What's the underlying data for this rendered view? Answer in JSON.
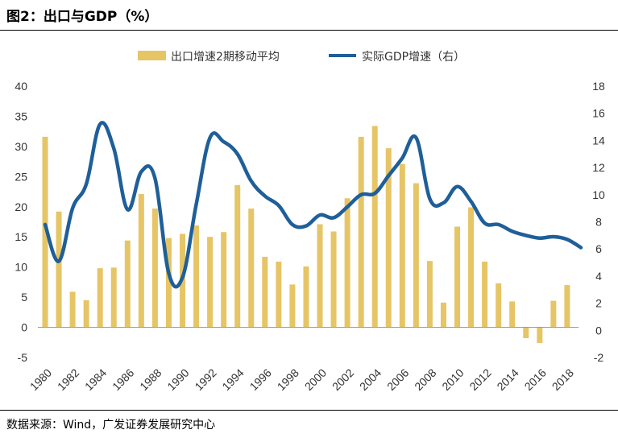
{
  "header": {
    "title": "图2：出口与GDP（%）"
  },
  "footer": {
    "source": "数据来源：Wind，广发证券发展研究中心"
  },
  "colors": {
    "bar": "#E6C566",
    "line": "#1F5F99",
    "axis": "#999999"
  },
  "chart_data": {
    "type": "bar+line",
    "title": "出口与GDP（%）",
    "legend": [
      "出口增速2期移动平均",
      "实际GDP增速（右）"
    ],
    "left_axis": {
      "ylim": [
        -5,
        40
      ],
      "ticks": [
        -5,
        0,
        5,
        10,
        15,
        20,
        25,
        30,
        35,
        40
      ]
    },
    "right_axis": {
      "ylim": [
        -2,
        18
      ],
      "ticks": [
        -2,
        0,
        2,
        4,
        6,
        8,
        10,
        12,
        14,
        16,
        18
      ]
    },
    "x_tick_labels": [
      "1980",
      "1982",
      "1984",
      "1986",
      "1988",
      "1990",
      "1992",
      "1994",
      "1996",
      "1998",
      "2000",
      "2002",
      "2004",
      "2006",
      "2008",
      "2010",
      "2012",
      "2014",
      "2016",
      "2018"
    ],
    "years": [
      1980,
      1981,
      1982,
      1983,
      1984,
      1985,
      1986,
      1987,
      1988,
      1989,
      1990,
      1991,
      1992,
      1993,
      1994,
      1995,
      1996,
      1997,
      1998,
      1999,
      2000,
      2001,
      2002,
      2003,
      2004,
      2005,
      2006,
      2007,
      2008,
      2009,
      2010,
      2011,
      2012,
      2013,
      2014,
      2015,
      2016,
      2017,
      2018,
      2019
    ],
    "series": [
      {
        "name": "出口增速2期移动平均",
        "type": "bar",
        "axis": "left",
        "x": [
          1980,
          1981,
          1982,
          1983,
          1984,
          1985,
          1986,
          1987,
          1988,
          1989,
          1990,
          1991,
          1992,
          1993,
          1994,
          1995,
          1996,
          1997,
          1998,
          1999,
          2000,
          2001,
          2002,
          2003,
          2004,
          2005,
          2006,
          2007,
          2008,
          2009,
          2010,
          2011,
          2012,
          2013,
          2014,
          2015,
          2016,
          2017,
          2018
        ],
        "values": [
          31.6,
          19.2,
          5.9,
          4.5,
          9.8,
          9.9,
          14.4,
          22.1,
          19.7,
          14.8,
          15.5,
          16.9,
          15.0,
          15.8,
          23.6,
          19.7,
          11.7,
          10.9,
          7.1,
          10.1,
          17.1,
          15.9,
          21.4,
          31.6,
          33.4,
          29.7,
          27.1,
          23.9,
          11.0,
          4.1,
          16.7,
          19.9,
          10.9,
          7.3,
          4.3,
          -1.8,
          -2.6,
          4.4,
          7.0
        ]
      },
      {
        "name": "实际GDP增速（右）",
        "type": "line",
        "axis": "right",
        "x": [
          1980,
          1981,
          1982,
          1983,
          1984,
          1985,
          1986,
          1987,
          1988,
          1989,
          1990,
          1991,
          1992,
          1993,
          1994,
          1995,
          1996,
          1997,
          1998,
          1999,
          2000,
          2001,
          2002,
          2003,
          2004,
          2005,
          2006,
          2007,
          2008,
          2009,
          2010,
          2011,
          2012,
          2013,
          2014,
          2015,
          2016,
          2017,
          2018,
          2019
        ],
        "values": [
          7.8,
          5.1,
          9.0,
          10.8,
          15.2,
          13.4,
          8.9,
          11.7,
          11.2,
          4.2,
          3.9,
          9.3,
          14.2,
          13.9,
          13.0,
          11.0,
          9.9,
          9.2,
          7.8,
          7.7,
          8.5,
          8.3,
          9.1,
          10.0,
          10.1,
          11.4,
          12.7,
          14.2,
          9.7,
          9.4,
          10.6,
          9.5,
          7.9,
          7.8,
          7.3,
          7.0,
          6.8,
          6.9,
          6.7,
          6.1
        ]
      }
    ]
  }
}
